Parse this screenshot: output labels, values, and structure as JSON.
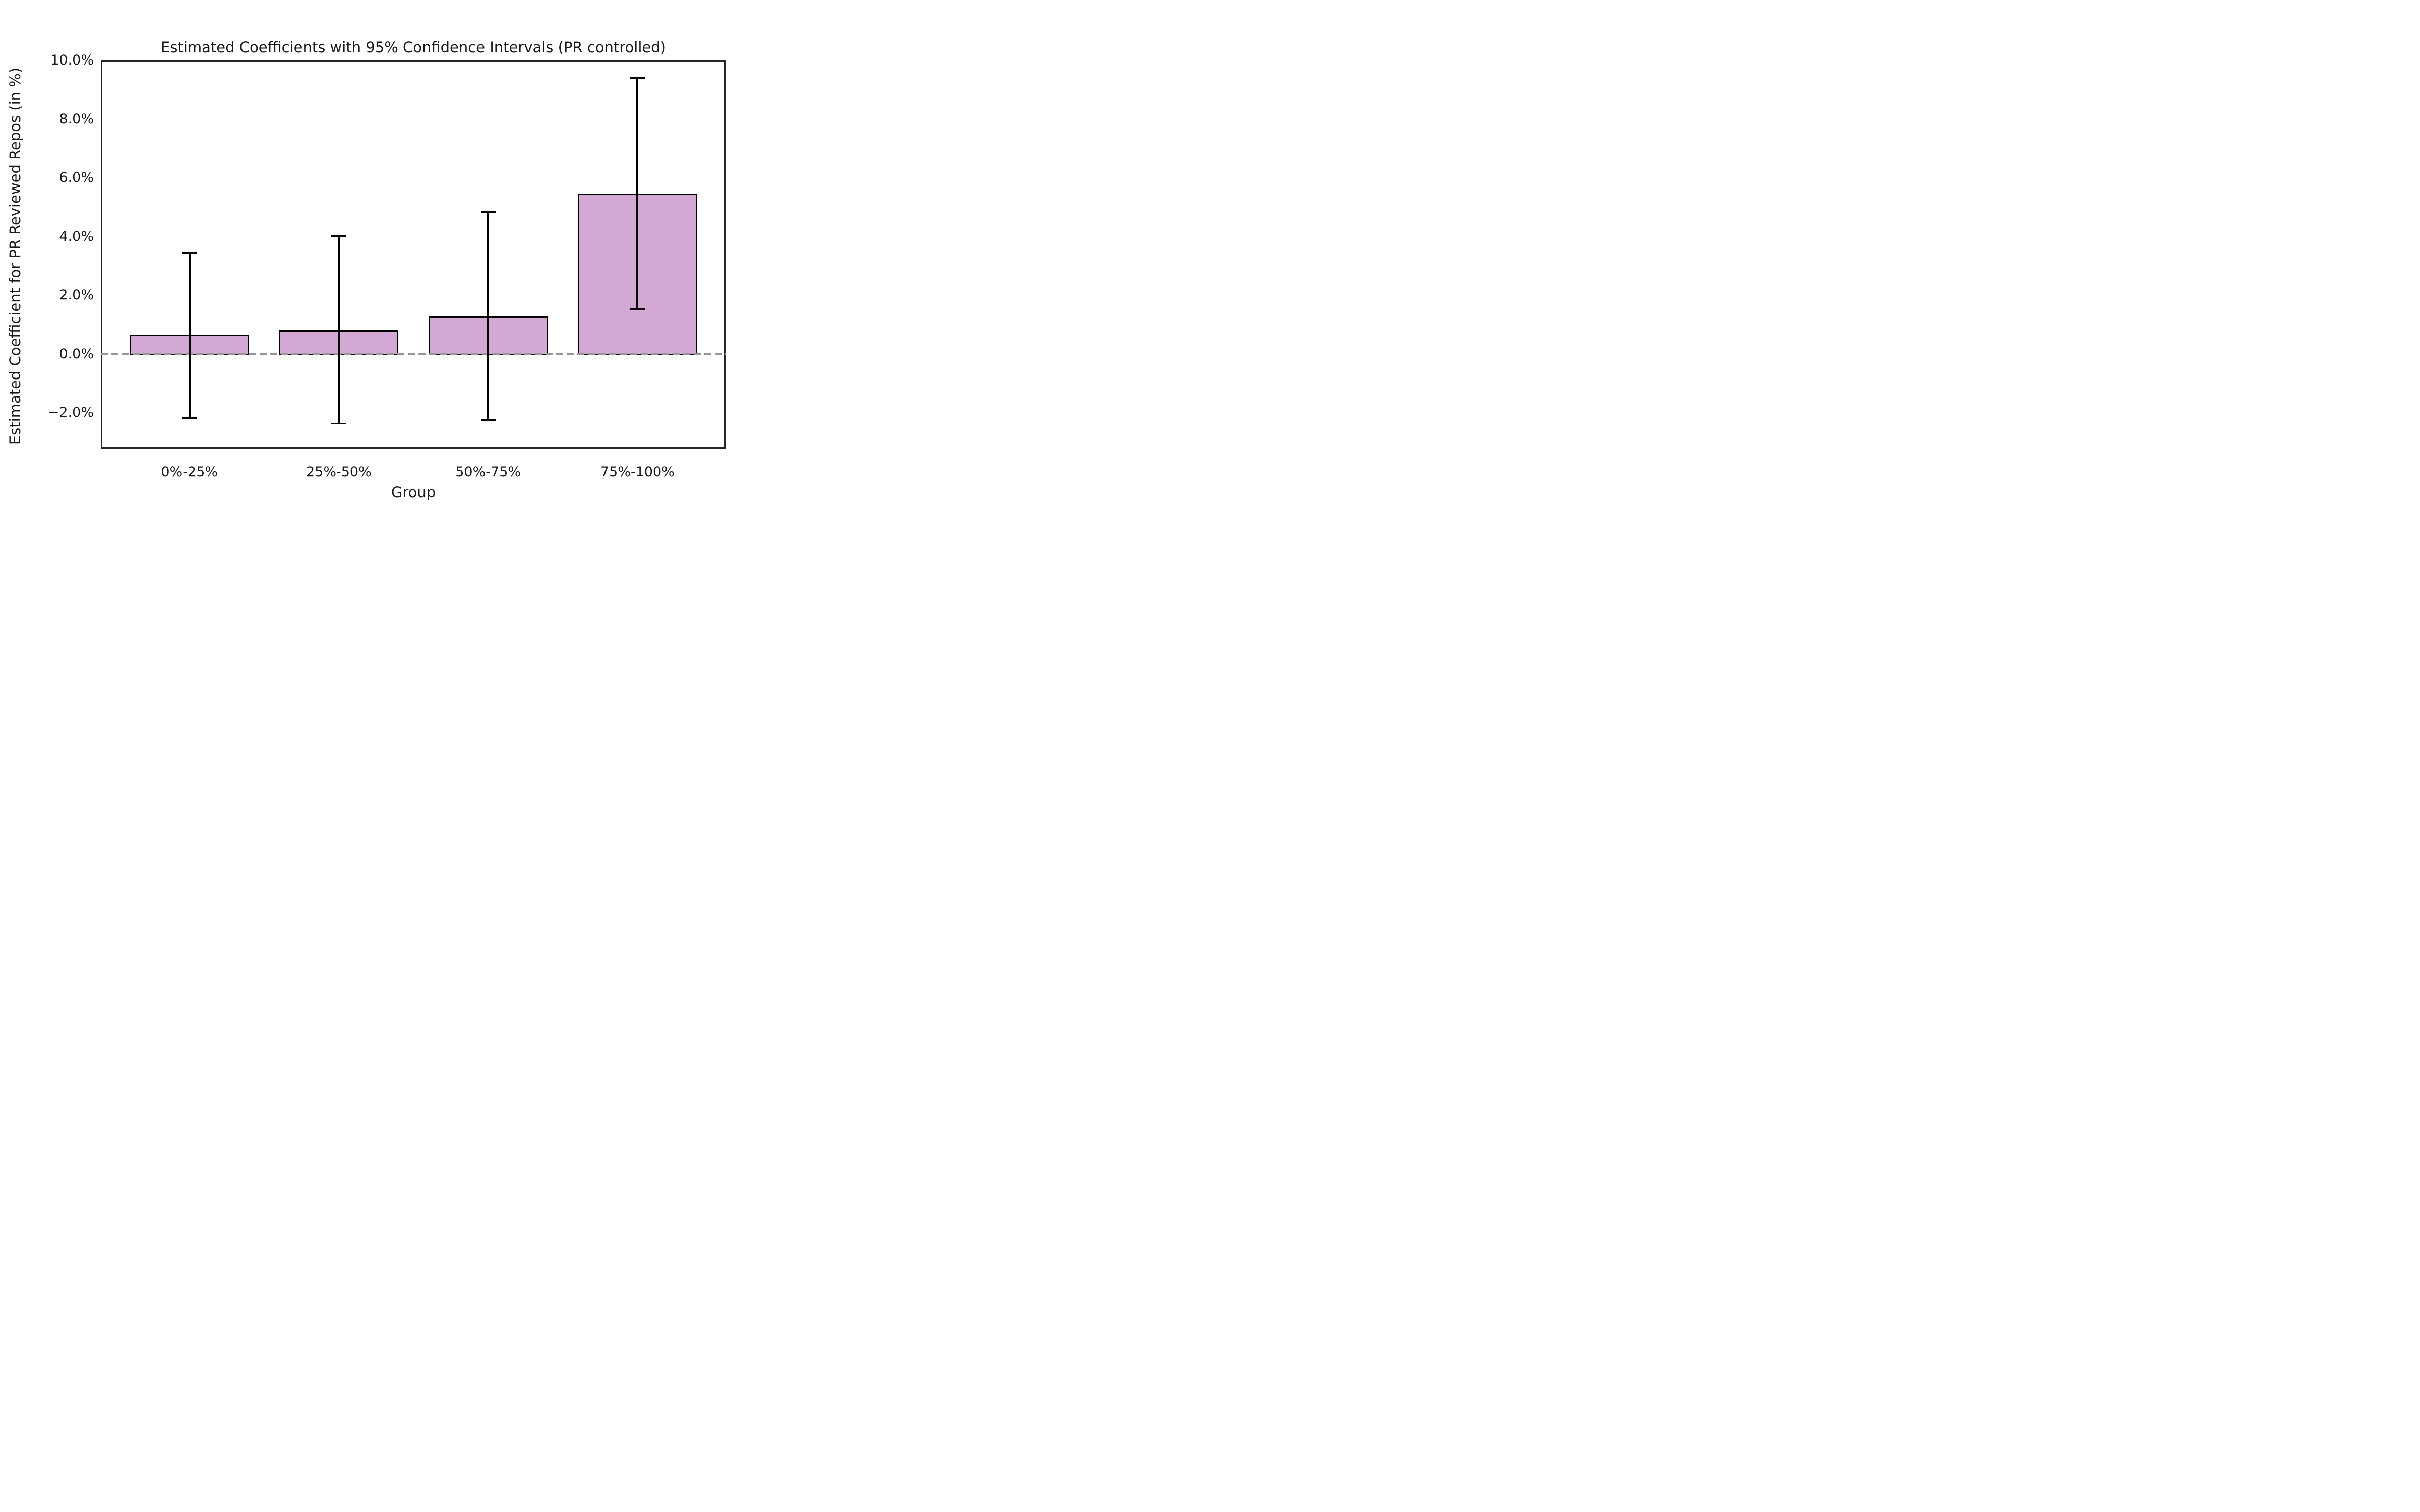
{
  "chart_data": {
    "type": "bar",
    "title": "Estimated Coefficients with 95% Confidence Intervals (PR controlled)",
    "xlabel": "Group",
    "ylabel": "Estimated Coefficient for PR Reviewed Repos (in %)",
    "categories": [
      "0%-25%",
      "25%-50%",
      "50%-75%",
      "75%-100%"
    ],
    "series": [
      {
        "name": "Estimated coefficient for PR reviewed repos (in %)",
        "values": [
          0.63,
          0.79,
          1.27,
          5.45
        ]
      }
    ],
    "error_bars": {
      "confidence_level": "95%",
      "lower": [
        -2.16,
        -2.36,
        -2.24,
        1.54
      ],
      "upper": [
        3.45,
        4.02,
        4.84,
        9.41
      ]
    },
    "yticks": [
      {
        "value": 10.0,
        "label": "10.0%"
      },
      {
        "value": 8.0,
        "label": "8.0%"
      },
      {
        "value": 6.0,
        "label": "6.0%"
      },
      {
        "value": 4.0,
        "label": "4.0%"
      },
      {
        "value": 2.0,
        "label": "2.0%"
      },
      {
        "value": 0.0,
        "label": "0.0%"
      },
      {
        "value": -2.0,
        "label": "−2.0%"
      }
    ],
    "ylim": [
      -3.21,
      10.0
    ],
    "grid": false,
    "legend": false,
    "zero_line": {
      "value": 0,
      "style": "dashed",
      "color": "#969696"
    },
    "colors": {
      "bar_fill": "#d4a8d4",
      "bar_edge": "#000000",
      "error_bar": "#000000",
      "spine": "#262626",
      "text": "#1a1a1a",
      "background": "#ffffff"
    }
  }
}
